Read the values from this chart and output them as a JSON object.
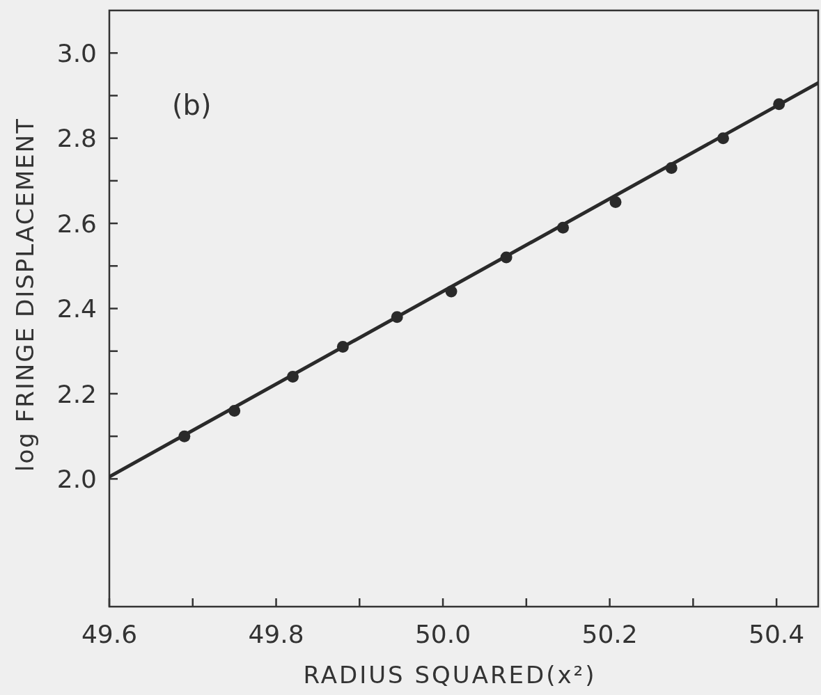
{
  "chart_data": {
    "type": "scatter",
    "xlabel": "RADIUS SQUARED(x²)",
    "ylabel": "log FRINGE DISPLACEMENT",
    "annotations": [
      "(b)"
    ],
    "xlim": [
      49.6,
      50.45
    ],
    "ylim": [
      1.7,
      3.1
    ],
    "xticks": [
      49.6,
      {
        "value": 49.7,
        "label": null
      },
      49.8,
      {
        "value": 49.9,
        "label": null
      },
      {
        "value": 50.0,
        "label": "50.0"
      },
      {
        "value": 50.1,
        "label": null
      },
      50.2,
      {
        "value": 50.3,
        "label": null
      },
      50.4
    ],
    "yticks": [
      {
        "value": 2.0,
        "label": "2.0"
      },
      {
        "value": 2.1,
        "label": null
      },
      2.2,
      {
        "value": 2.3,
        "label": null
      },
      2.4,
      {
        "value": 2.5,
        "label": null
      },
      2.6,
      {
        "value": 2.7,
        "label": null
      },
      2.8,
      {
        "value": 2.9,
        "label": null
      },
      {
        "value": 3.0,
        "label": "3.0"
      }
    ],
    "series": [
      {
        "type": "scatter",
        "color": "#2a2a2a",
        "marker": "circle",
        "x": [
          49.69,
          49.75,
          49.82,
          49.88,
          49.945,
          50.01,
          50.076,
          50.144,
          50.207,
          50.274,
          50.336,
          50.403
        ],
        "values": [
          2.1,
          2.16,
          2.24,
          2.31,
          2.38,
          2.44,
          2.52,
          2.59,
          2.65,
          2.73,
          2.8,
          2.88
        ]
      },
      {
        "type": "line",
        "color": "#2a2a2a",
        "line_style": "solid",
        "x": [
          49.6,
          50.45
        ],
        "values": [
          2.005,
          2.93
        ]
      }
    ]
  }
}
